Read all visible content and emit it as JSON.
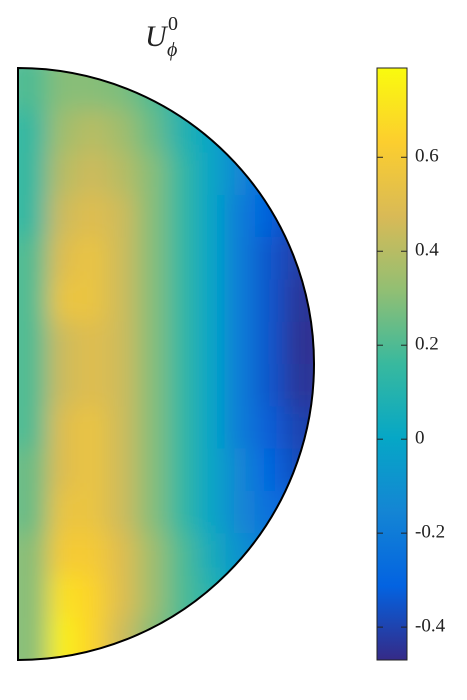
{
  "chart_data": {
    "type": "heatmap",
    "title": {
      "base": "U",
      "sub": "ϕ",
      "sup": "0"
    },
    "colormap": "parula",
    "clim": [
      -0.47,
      0.79
    ],
    "cticks": [
      -0.4,
      -0.2,
      0,
      0.2,
      0.4,
      0.6
    ],
    "z": [
      [
        0.2,
        0.3,
        0.3,
        0.28,
        0.2,
        0.1,
        0,
        -0.1,
        -0.2,
        -0.3
      ],
      [
        0.15,
        0.35,
        0.4,
        0.35,
        0.25,
        0.1,
        0,
        -0.15,
        -0.25,
        -0.35
      ],
      [
        0.15,
        0.4,
        0.45,
        0.4,
        0.3,
        0.15,
        0,
        -0.15,
        -0.3,
        -0.38
      ],
      [
        0.15,
        0.45,
        0.5,
        0.45,
        0.3,
        0.15,
        0,
        -0.2,
        -0.32,
        -0.4
      ],
      [
        0.2,
        0.5,
        0.55,
        0.45,
        0.3,
        0.15,
        0,
        -0.2,
        -0.35,
        -0.42
      ],
      [
        0.2,
        0.55,
        0.55,
        0.45,
        0.3,
        0.15,
        0,
        -0.2,
        -0.35,
        -0.44
      ],
      [
        0.2,
        0.45,
        0.5,
        0.45,
        0.3,
        0.15,
        0,
        -0.2,
        -0.35,
        -0.45
      ],
      [
        0.2,
        0.45,
        0.5,
        0.45,
        0.3,
        0.15,
        0,
        -0.2,
        -0.35,
        -0.44
      ],
      [
        0.2,
        0.5,
        0.55,
        0.45,
        0.3,
        0.15,
        0,
        -0.2,
        -0.33,
        -0.4
      ],
      [
        0.25,
        0.5,
        0.55,
        0.45,
        0.3,
        0.15,
        0,
        -0.15,
        -0.3,
        -0.38
      ],
      [
        0.25,
        0.55,
        0.55,
        0.45,
        0.3,
        0.15,
        0,
        -0.15,
        -0.25,
        -0.3
      ],
      [
        0.3,
        0.6,
        0.6,
        0.5,
        0.35,
        0.2,
        0.05,
        -0.1,
        -0.2,
        -0.25
      ],
      [
        0.3,
        0.7,
        0.65,
        0.5,
        0.35,
        0.2,
        0.1,
        0,
        -0.1,
        -0.2
      ],
      [
        0.3,
        0.75,
        0.65,
        0.45,
        0.3,
        0.2,
        0.1,
        0,
        0,
        0
      ]
    ]
  }
}
